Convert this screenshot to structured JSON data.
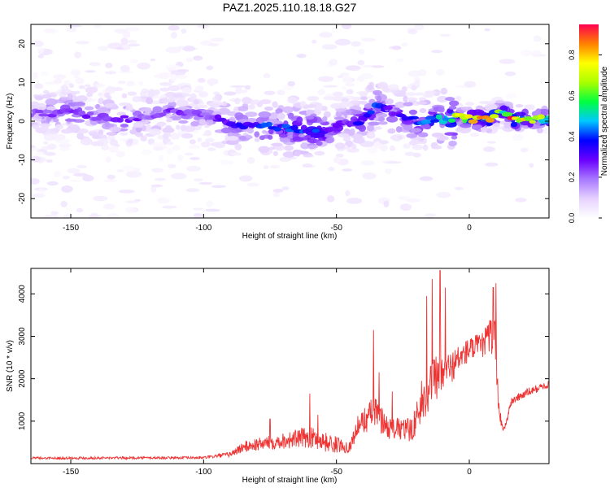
{
  "figure_title": "PAZ1.2025.110.18.18.G27",
  "chart_data": [
    {
      "type": "heatmap",
      "xlabel": "Height of straight line (km)",
      "ylabel": "Frequency (Hz)",
      "xlim": [
        -165,
        30
      ],
      "ylim": [
        -25,
        25
      ],
      "x_ticks": [
        -150,
        -100,
        -50,
        0
      ],
      "y_ticks": [
        -20,
        -10,
        0,
        10,
        20
      ],
      "colorbar": {
        "label": "Normalized spectral amplitude",
        "range": [
          0,
          0.95
        ],
        "ticks": [
          0.0,
          0.2,
          0.4,
          0.6,
          0.8
        ],
        "colors": [
          "#ffffff",
          "#e6d2ff",
          "#a878ff",
          "#6a00ff",
          "#0000ff",
          "#00c8ff",
          "#00ff40",
          "#aaff00",
          "#ffff00",
          "#ff8000",
          "#ff0050"
        ]
      },
      "ridge": [
        {
          "x": -160,
          "f": 2.0,
          "a": 0.22
        },
        {
          "x": -150,
          "f": 2.5,
          "a": 0.28
        },
        {
          "x": -140,
          "f": 1.0,
          "a": 0.25
        },
        {
          "x": -130,
          "f": 0.5,
          "a": 0.27
        },
        {
          "x": -120,
          "f": 1.5,
          "a": 0.22
        },
        {
          "x": -110,
          "f": 2.5,
          "a": 0.25
        },
        {
          "x": -100,
          "f": 1.5,
          "a": 0.22
        },
        {
          "x": -92,
          "f": 0.0,
          "a": 0.3
        },
        {
          "x": -85,
          "f": -1.0,
          "a": 0.32
        },
        {
          "x": -75,
          "f": -1.5,
          "a": 0.38
        },
        {
          "x": -65,
          "f": -2.0,
          "a": 0.42
        },
        {
          "x": -55,
          "f": -3.0,
          "a": 0.38
        },
        {
          "x": -48,
          "f": -1.0,
          "a": 0.25
        },
        {
          "x": -40,
          "f": 0.5,
          "a": 0.35
        },
        {
          "x": -35,
          "f": 4.0,
          "a": 0.42
        },
        {
          "x": -28,
          "f": 2.0,
          "a": 0.3
        },
        {
          "x": -20,
          "f": 0.0,
          "a": 0.35
        },
        {
          "x": -12,
          "f": 0.5,
          "a": 0.45
        },
        {
          "x": -5,
          "f": 1.0,
          "a": 0.6
        },
        {
          "x": 2,
          "f": 0.5,
          "a": 0.85
        },
        {
          "x": 8,
          "f": 0.5,
          "a": 0.8
        },
        {
          "x": 12,
          "f": 3.0,
          "a": 0.55
        },
        {
          "x": 16,
          "f": 0.5,
          "a": 0.85
        },
        {
          "x": 22,
          "f": 0.5,
          "a": 0.7
        },
        {
          "x": 28,
          "f": 0.5,
          "a": 0.6
        }
      ]
    },
    {
      "type": "line",
      "xlabel": "Height of straight line (km)",
      "ylabel": "SNR (10 * v/v)",
      "xlim": [
        -165,
        30
      ],
      "ylim": [
        0,
        4600
      ],
      "x_ticks": [
        -150,
        -100,
        -50,
        0
      ],
      "y_ticks": [
        1000,
        2000,
        3000,
        4000
      ],
      "color": "#ee3333",
      "envelope": [
        {
          "x": -165,
          "y": 120,
          "spread": 60
        },
        {
          "x": -100,
          "y": 130,
          "spread": 60
        },
        {
          "x": -90,
          "y": 200,
          "spread": 120
        },
        {
          "x": -85,
          "y": 350,
          "spread": 280
        },
        {
          "x": -75,
          "y": 450,
          "spread": 330
        },
        {
          "x": -60,
          "y": 550,
          "spread": 500
        },
        {
          "x": -52,
          "y": 400,
          "spread": 450
        },
        {
          "x": -45,
          "y": 350,
          "spread": 250
        },
        {
          "x": -42,
          "y": 800,
          "spread": 500
        },
        {
          "x": -36,
          "y": 1100,
          "spread": 800
        },
        {
          "x": -30,
          "y": 750,
          "spread": 500
        },
        {
          "x": -22,
          "y": 700,
          "spread": 600
        },
        {
          "x": -18,
          "y": 1200,
          "spread": 900
        },
        {
          "x": -14,
          "y": 1800,
          "spread": 1100
        },
        {
          "x": -10,
          "y": 1900,
          "spread": 1000
        },
        {
          "x": -5,
          "y": 2300,
          "spread": 700
        },
        {
          "x": 0,
          "y": 2600,
          "spread": 600
        },
        {
          "x": 5,
          "y": 2700,
          "spread": 600
        },
        {
          "x": 8,
          "y": 2900,
          "spread": 900
        },
        {
          "x": 10,
          "y": 2700,
          "spread": 1100
        },
        {
          "x": 11,
          "y": 1200,
          "spread": 500
        },
        {
          "x": 13,
          "y": 750,
          "spread": 200
        },
        {
          "x": 16,
          "y": 1450,
          "spread": 200
        },
        {
          "x": 22,
          "y": 1650,
          "spread": 200
        },
        {
          "x": 30,
          "y": 1850,
          "spread": 150
        }
      ],
      "spikes": [
        {
          "x": -75,
          "y": 1050
        },
        {
          "x": -60,
          "y": 1650
        },
        {
          "x": -57,
          "y": 1150
        },
        {
          "x": -36,
          "y": 3150
        },
        {
          "x": -34,
          "y": 2150
        },
        {
          "x": -29,
          "y": 1700
        },
        {
          "x": -18,
          "y": 1950
        },
        {
          "x": -16,
          "y": 3950
        },
        {
          "x": -14,
          "y": 4350
        },
        {
          "x": -13,
          "y": 2450
        },
        {
          "x": -11,
          "y": 4550
        },
        {
          "x": -9,
          "y": 4150
        },
        {
          "x": 9,
          "y": 4150
        },
        {
          "x": 10,
          "y": 4250
        }
      ]
    }
  ]
}
